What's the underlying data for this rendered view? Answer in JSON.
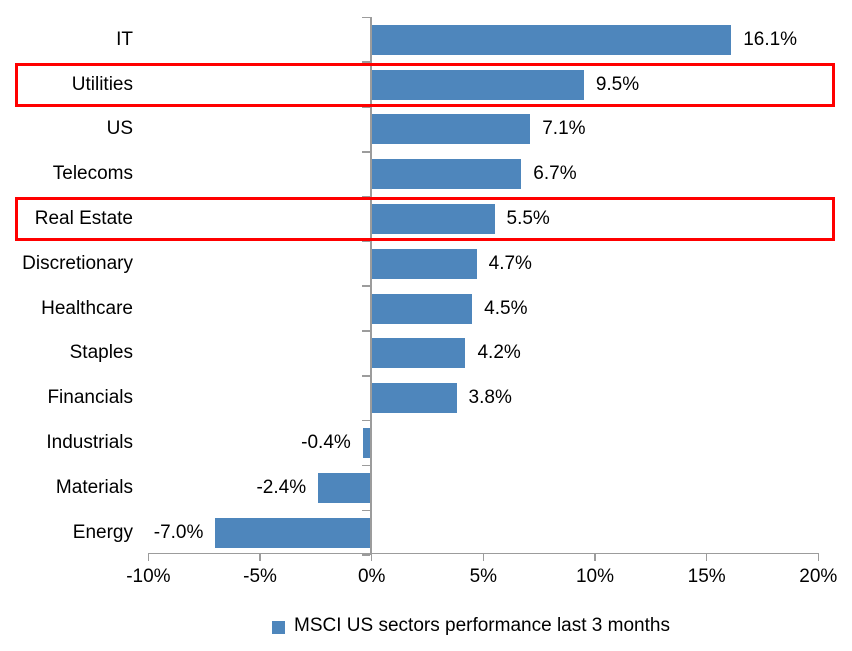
{
  "chart_data": {
    "type": "bar",
    "orientation": "horizontal",
    "title": "",
    "categories": [
      "IT",
      "Utilities",
      "US",
      "Telecoms",
      "Real Estate",
      "Discretionary",
      "Healthcare",
      "Staples",
      "Financials",
      "Industrials",
      "Materials",
      "Energy"
    ],
    "values": [
      16.1,
      9.5,
      7.1,
      6.7,
      5.5,
      4.7,
      4.5,
      4.2,
      3.8,
      -0.4,
      -2.4,
      -7.0
    ],
    "value_labels": [
      "16.1%",
      "9.5%",
      "7.1%",
      "6.7%",
      "5.5%",
      "4.7%",
      "4.5%",
      "4.2%",
      "3.8%",
      "-0.4%",
      "-2.4%",
      "-7.0%"
    ],
    "highlighted_categories": [
      "Utilities",
      "Real Estate"
    ],
    "x_axis": {
      "min": -10,
      "max": 20,
      "tick_values": [
        -10,
        -5,
        0,
        5,
        10,
        15,
        20
      ],
      "tick_labels": [
        "-10%",
        "-5%",
        "0%",
        "5%",
        "10%",
        "15%",
        "20%"
      ]
    },
    "grid": "off",
    "legend": {
      "position": "bottom-center",
      "marker": "square",
      "label": "MSCI US sectors performance last 3 months"
    },
    "colors": {
      "bar": "#4E86BC",
      "highlight_box": "#FF0000",
      "axis": "#9C9C9C",
      "text": "#000000"
    }
  }
}
